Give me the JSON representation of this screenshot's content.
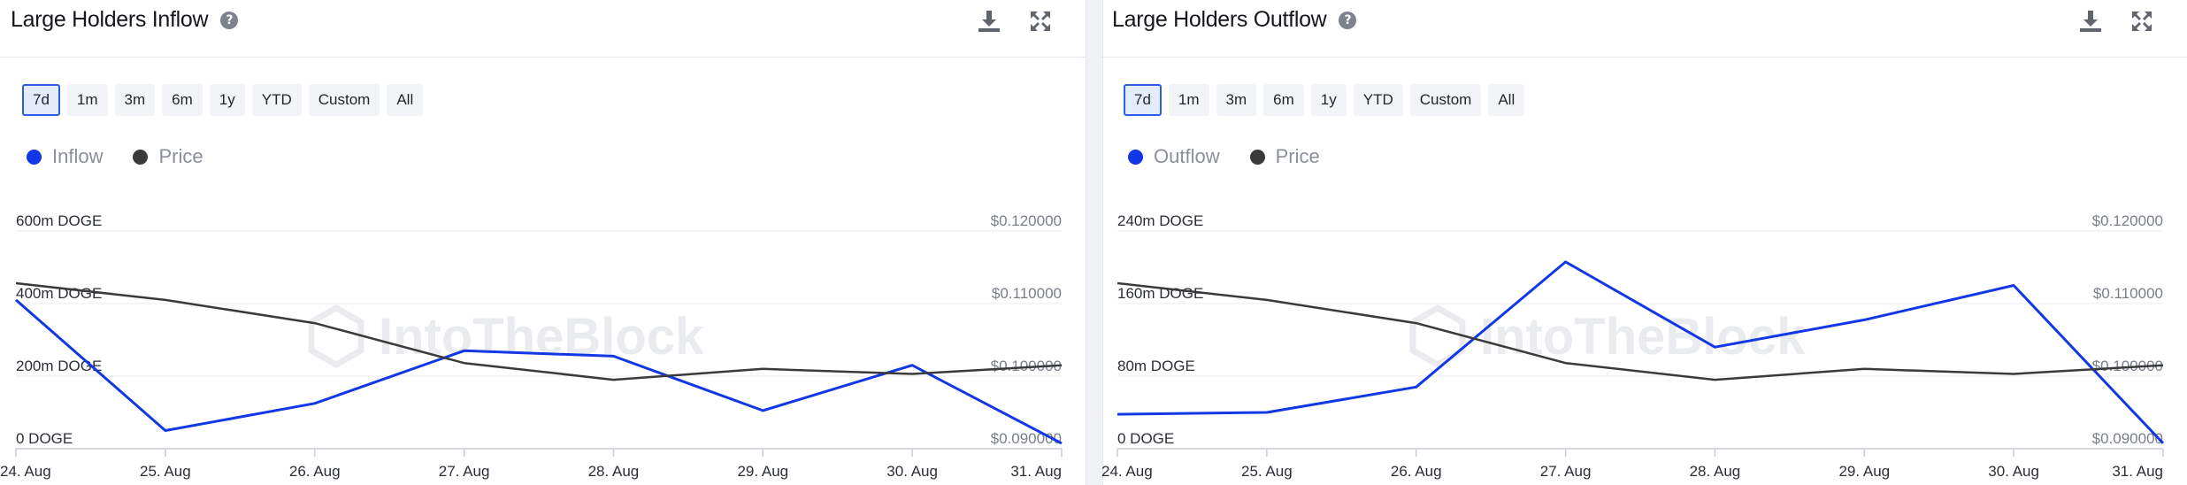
{
  "colors": {
    "series_line": "#1238e6",
    "price_line": "#3a3a3a",
    "active_border": "#2d5de6"
  },
  "watermark": "IntoTheBlock",
  "icons": {
    "help": "question-circle-icon",
    "download": "download-icon",
    "expand": "expand-icon"
  },
  "time_buttons": [
    "7d",
    "1m",
    "3m",
    "6m",
    "1y",
    "YTD",
    "Custom",
    "All"
  ],
  "active_button": "7d",
  "panels": [
    {
      "title": "Large Holders Inflow",
      "help_glyph": "?",
      "legend": [
        {
          "label": "Inflow",
          "color": "#1238e6"
        },
        {
          "label": "Price",
          "color": "#3a3a3a"
        }
      ]
    },
    {
      "title": "Large Holders Outflow",
      "help_glyph": "?",
      "legend": [
        {
          "label": "Outflow",
          "color": "#1238e6"
        },
        {
          "label": "Price",
          "color": "#3a3a3a"
        }
      ]
    }
  ],
  "chart_data": [
    {
      "type": "line",
      "categories": [
        "24. Aug",
        "25. Aug",
        "26. Aug",
        "27. Aug",
        "28. Aug",
        "29. Aug",
        "30. Aug",
        "31. Aug"
      ],
      "left_ticks": [
        "0 DOGE",
        "200m DOGE",
        "400m DOGE",
        "600m DOGE"
      ],
      "right_ticks": [
        "$0.090000",
        "$0.100000",
        "$0.110000",
        "$0.120000"
      ],
      "ylim_left": [
        0,
        600000000
      ],
      "ylim_right": [
        0.09,
        0.12
      ],
      "series": [
        {
          "name": "Inflow",
          "axis": "left",
          "values": [
            410000000,
            50000000,
            125000000,
            270000000,
            255000000,
            105000000,
            230000000,
            15000000
          ]
        },
        {
          "name": "Price",
          "axis": "right",
          "values": [
            0.1128,
            0.1105,
            0.1073,
            0.1018,
            0.0995,
            0.101,
            0.1003,
            0.1015
          ]
        }
      ],
      "grid": true
    },
    {
      "type": "line",
      "categories": [
        "24. Aug",
        "25. Aug",
        "26. Aug",
        "27. Aug",
        "28. Aug",
        "29. Aug",
        "30. Aug",
        "31. Aug"
      ],
      "left_ticks": [
        "0 DOGE",
        "80m DOGE",
        "160m DOGE",
        "240m DOGE"
      ],
      "right_ticks": [
        "$0.090000",
        "$0.100000",
        "$0.110000",
        "$0.120000"
      ],
      "ylim_left": [
        0,
        240000000
      ],
      "ylim_right": [
        0.09,
        0.12
      ],
      "series": [
        {
          "name": "Outflow",
          "axis": "left",
          "values": [
            38000000,
            40000000,
            68000000,
            206000000,
            112000000,
            142000000,
            180000000,
            6000000
          ]
        },
        {
          "name": "Price",
          "axis": "right",
          "values": [
            0.1128,
            0.1105,
            0.1073,
            0.1018,
            0.0995,
            0.101,
            0.1003,
            0.1015
          ]
        }
      ],
      "grid": true
    }
  ]
}
